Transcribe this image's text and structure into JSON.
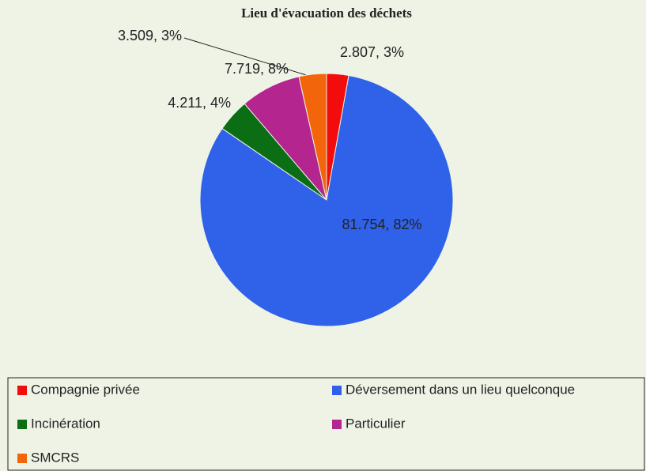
{
  "chart_data": {
    "type": "pie",
    "title": "Lieu d'évacuation des déchets",
    "categories": [
      "Compagnie privée",
      "Déversement dans un lieu quelconque",
      "Incinération",
      "Particulier",
      "SMCRS"
    ],
    "values": [
      2.807,
      81.754,
      4.211,
      7.719,
      3.509
    ],
    "value_labels": [
      "2.807, 3%",
      "81.754, 82%",
      "4.211, 4%",
      "7.719, 8%",
      "3.509, 3%"
    ],
    "colors": [
      "#f20c0c",
      "#2f62e8",
      "#0b6e14",
      "#b5258f",
      "#f2650a"
    ],
    "legend": "bottom"
  }
}
